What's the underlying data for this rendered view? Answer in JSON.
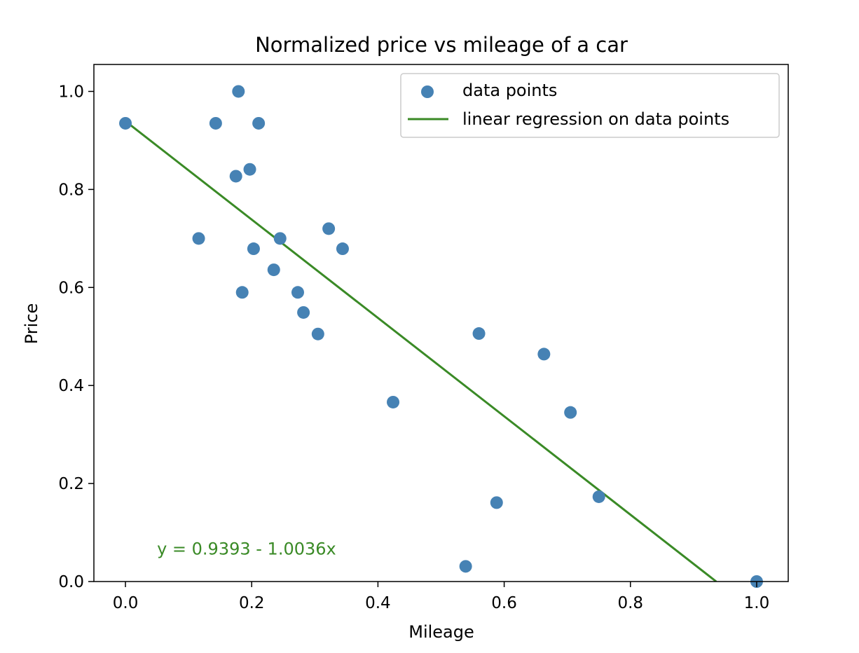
{
  "chart_data": {
    "type": "scatter",
    "title": "Normalized price vs mileage of a car",
    "xlabel": "Mileage",
    "ylabel": "Price",
    "xlim": [
      -0.05,
      1.05
    ],
    "ylim": [
      0.0,
      1.055
    ],
    "xticks": [
      0.0,
      0.2,
      0.4,
      0.6,
      0.8,
      1.0
    ],
    "yticks": [
      0.0,
      0.2,
      0.4,
      0.6,
      0.8,
      1.0
    ],
    "xtick_labels": [
      "0.0",
      "0.2",
      "0.4",
      "0.6",
      "0.8",
      "1.0"
    ],
    "ytick_labels": [
      "0.0",
      "0.2",
      "0.4",
      "0.6",
      "0.8",
      "1.0"
    ],
    "grid": false,
    "legend": "top-right",
    "series": [
      {
        "name": "data points",
        "kind": "scatter",
        "color": "#4682b4",
        "points": [
          [
            0.0,
            0.935
          ],
          [
            0.116,
            0.7
          ],
          [
            0.143,
            0.935
          ],
          [
            0.175,
            0.827
          ],
          [
            0.179,
            1.0
          ],
          [
            0.185,
            0.59
          ],
          [
            0.197,
            0.841
          ],
          [
            0.203,
            0.679
          ],
          [
            0.211,
            0.935
          ],
          [
            0.235,
            0.636
          ],
          [
            0.245,
            0.7
          ],
          [
            0.273,
            0.59
          ],
          [
            0.282,
            0.549
          ],
          [
            0.305,
            0.505
          ],
          [
            0.322,
            0.72
          ],
          [
            0.344,
            0.679
          ],
          [
            0.424,
            0.366
          ],
          [
            0.539,
            0.031
          ],
          [
            0.56,
            0.506
          ],
          [
            0.588,
            0.161
          ],
          [
            0.663,
            0.464
          ],
          [
            0.705,
            0.345
          ],
          [
            0.75,
            0.173
          ],
          [
            1.0,
            0.0
          ]
        ]
      },
      {
        "name": "linear regression on data points",
        "kind": "line",
        "color": "#3a8a26",
        "intercept": 0.9393,
        "slope": -1.0036
      }
    ],
    "annotations": [
      {
        "text": "y = 0.9393 - 1.0036x",
        "x": 0.05,
        "y": 0.055,
        "color": "#3a8a26"
      }
    ]
  }
}
